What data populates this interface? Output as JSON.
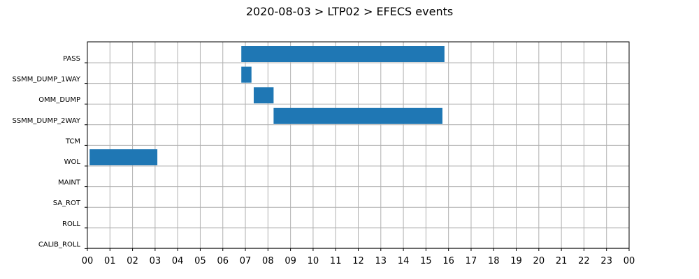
{
  "chart_data": {
    "type": "bar",
    "orientation": "horizontal-gantt",
    "title": "2020-08-03 > LTP02 > EFECS events",
    "xlabel": "",
    "ylabel": "",
    "xlim": [
      0,
      24
    ],
    "x_tick_labels": [
      "00",
      "01",
      "02",
      "03",
      "04",
      "05",
      "06",
      "07",
      "08",
      "09",
      "10",
      "11",
      "12",
      "13",
      "14",
      "15",
      "16",
      "17",
      "18",
      "19",
      "20",
      "21",
      "22",
      "23",
      "00"
    ],
    "categories": [
      "PASS",
      "SSMM_DUMP_1WAY",
      "OMM_DUMP",
      "SSMM_DUMP_2WAY",
      "TCM",
      "WOL",
      "MAINT",
      "SA_ROT",
      "ROLL",
      "CALIB_ROLL"
    ],
    "events": [
      {
        "category": "PASS",
        "start": 6.82,
        "end": 15.82
      },
      {
        "category": "SSMM_DUMP_1WAY",
        "start": 6.82,
        "end": 7.27
      },
      {
        "category": "OMM_DUMP",
        "start": 7.37,
        "end": 8.25
      },
      {
        "category": "SSMM_DUMP_2WAY",
        "start": 8.25,
        "end": 15.73
      },
      {
        "category": "WOL",
        "start": 0.1,
        "end": 3.1
      }
    ],
    "grid": true,
    "bar_color": "#1f77b4"
  }
}
